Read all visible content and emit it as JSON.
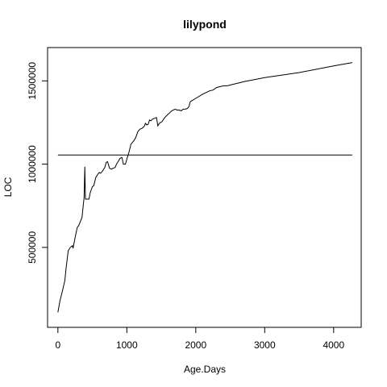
{
  "chart_data": {
    "type": "line",
    "title": "lilypond",
    "xlabel": "Age.Days",
    "ylabel": "LOC",
    "xlim": [
      -150,
      4400
    ],
    "ylim": [
      20000,
      1700000
    ],
    "x_ticks": [
      0,
      1000,
      2000,
      3000,
      4000
    ],
    "y_ticks": [
      500000,
      1000000,
      1500000
    ],
    "y_tick_labels": [
      "500000",
      "1000000",
      "1500000"
    ],
    "grid": false,
    "legend": "none",
    "reference_line": {
      "y": 1055000,
      "x_start": 0,
      "x_end": 4270
    },
    "series": [
      {
        "x": [
          0,
          30,
          60,
          100,
          120,
          150,
          180,
          210,
          220,
          250,
          280,
          300,
          320,
          350,
          380,
          390,
          400,
          420,
          450,
          470,
          500,
          520,
          550,
          580,
          600,
          620,
          650,
          680,
          700,
          720,
          750,
          780,
          800,
          830,
          850,
          880,
          900,
          930,
          950,
          980,
          1000,
          1030,
          1060,
          1100,
          1130,
          1160,
          1190,
          1220,
          1250,
          1270,
          1290,
          1310,
          1330,
          1350,
          1370,
          1400,
          1430,
          1450,
          1470,
          1490,
          1510,
          1550,
          1600,
          1650,
          1700,
          1730,
          1760,
          1790,
          1800,
          1820,
          1850,
          1880,
          1900,
          1920,
          1940,
          1960,
          2000,
          2100,
          2200,
          2250,
          2300,
          2350,
          2400,
          2450,
          2500,
          2550,
          2600,
          2700,
          3000,
          3500,
          4000,
          4270
        ],
        "y": [
          110000,
          180000,
          230000,
          300000,
          380000,
          480000,
          500000,
          510000,
          495000,
          560000,
          620000,
          630000,
          650000,
          680000,
          800000,
          985000,
          790000,
          790000,
          790000,
          830000,
          865000,
          870000,
          920000,
          940000,
          950000,
          945000,
          960000,
          980000,
          1010000,
          1015000,
          975000,
          970000,
          975000,
          980000,
          1000000,
          1020000,
          1035000,
          1040000,
          1000000,
          1000000,
          1030000,
          1070000,
          1120000,
          1140000,
          1160000,
          1195000,
          1210000,
          1215000,
          1225000,
          1245000,
          1235000,
          1240000,
          1265000,
          1260000,
          1270000,
          1275000,
          1280000,
          1230000,
          1245000,
          1250000,
          1255000,
          1280000,
          1300000,
          1320000,
          1330000,
          1325000,
          1325000,
          1320000,
          1325000,
          1330000,
          1330000,
          1335000,
          1345000,
          1375000,
          1380000,
          1385000,
          1395000,
          1420000,
          1440000,
          1445000,
          1460000,
          1465000,
          1470000,
          1470000,
          1475000,
          1480000,
          1485000,
          1495000,
          1520000,
          1550000,
          1590000,
          1610000
        ]
      }
    ]
  }
}
